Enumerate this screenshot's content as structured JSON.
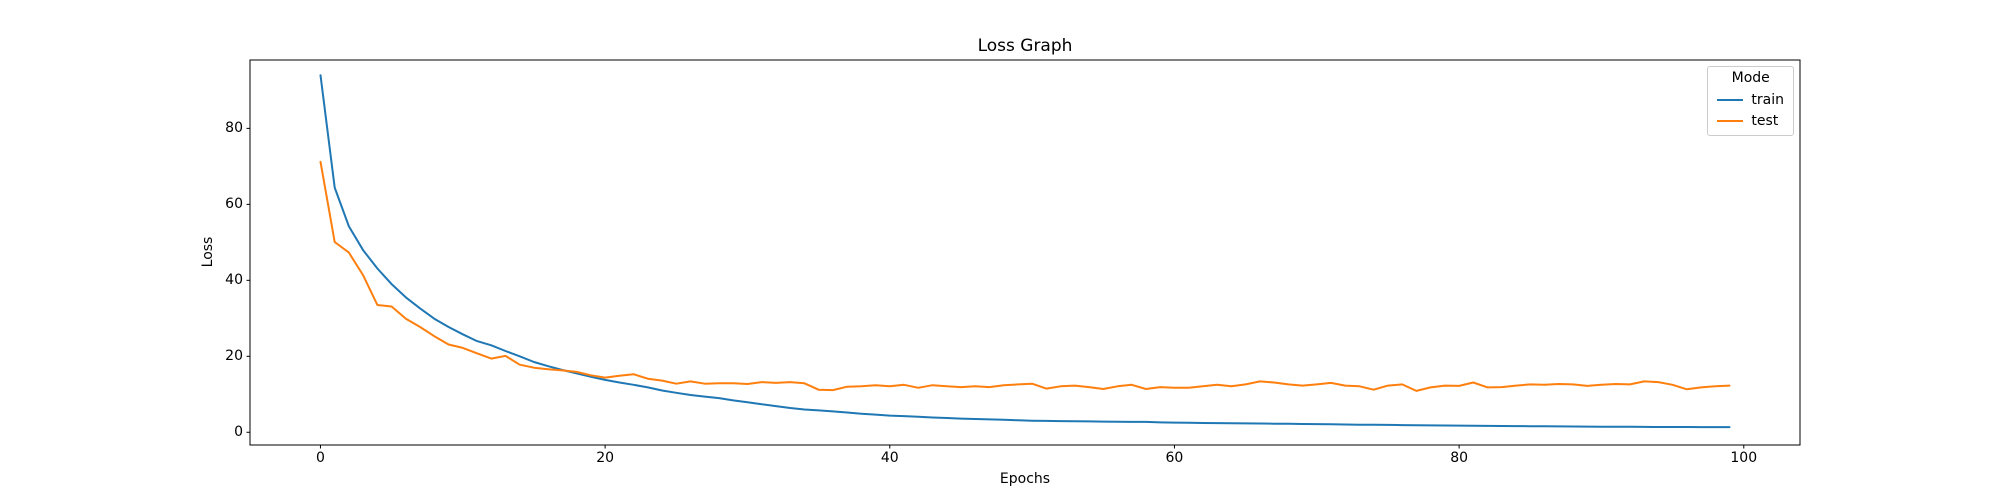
{
  "figure": {
    "title": "Loss Graph",
    "xlabel": "Epochs",
    "ylabel": "Loss"
  },
  "legend": {
    "title": "Mode",
    "entries": [
      {
        "label": "train",
        "color": "#1f77b4"
      },
      {
        "label": "test",
        "color": "#ff7f0e"
      }
    ]
  },
  "chart_data": {
    "type": "line",
    "title": "Loss Graph",
    "xlabel": "Epochs",
    "ylabel": "Loss",
    "grid": false,
    "legend_title": "Mode",
    "legend_position": "upper right",
    "xlim": [
      -4.95,
      103.95
    ],
    "ylim": [
      -3.35,
      98.0
    ],
    "x_ticks": [
      0,
      20,
      40,
      60,
      80,
      100
    ],
    "y_ticks": [
      0,
      20,
      40,
      60,
      80
    ],
    "x": [
      0,
      1,
      2,
      3,
      4,
      5,
      6,
      7,
      8,
      9,
      10,
      11,
      12,
      13,
      14,
      15,
      16,
      17,
      18,
      19,
      20,
      21,
      22,
      23,
      24,
      25,
      26,
      27,
      28,
      29,
      30,
      31,
      32,
      33,
      34,
      35,
      36,
      37,
      38,
      39,
      40,
      41,
      42,
      43,
      44,
      45,
      46,
      47,
      48,
      49,
      50,
      51,
      52,
      53,
      54,
      55,
      56,
      57,
      58,
      59,
      60,
      61,
      62,
      63,
      64,
      65,
      66,
      67,
      68,
      69,
      70,
      71,
      72,
      73,
      74,
      75,
      76,
      77,
      78,
      79,
      80,
      81,
      82,
      83,
      84,
      85,
      86,
      87,
      88,
      89,
      90,
      91,
      92,
      93,
      94,
      95,
      96,
      97,
      98,
      99
    ],
    "series": [
      {
        "name": "train",
        "color": "#1f77b4",
        "values": [
          94.0,
          64.4,
          54.2,
          47.9,
          43.1,
          39.0,
          35.5,
          32.6,
          29.9,
          27.7,
          25.8,
          24.0,
          22.9,
          21.4,
          20.0,
          18.5,
          17.4,
          16.4,
          15.5,
          14.6,
          13.8,
          13.1,
          12.5,
          11.8,
          11.0,
          10.4,
          9.8,
          9.4,
          9.0,
          8.4,
          7.9,
          7.4,
          6.9,
          6.4,
          6.0,
          5.75,
          5.5,
          5.2,
          4.9,
          4.65,
          4.4,
          4.25,
          4.1,
          3.9,
          3.75,
          3.6,
          3.5,
          3.4,
          3.3,
          3.15,
          3.05,
          3.0,
          2.95,
          2.9,
          2.85,
          2.8,
          2.75,
          2.72,
          2.72,
          2.6,
          2.55,
          2.5,
          2.45,
          2.42,
          2.38,
          2.34,
          2.3,
          2.26,
          2.22,
          2.18,
          2.15,
          2.1,
          2.05,
          2.0,
          1.98,
          1.94,
          1.9,
          1.86,
          1.82,
          1.78,
          1.75,
          1.72,
          1.68,
          1.65,
          1.62,
          1.6,
          1.57,
          1.54,
          1.52,
          1.5,
          1.48,
          1.46,
          1.44,
          1.42,
          1.4,
          1.39,
          1.38,
          1.37,
          1.36,
          1.35
        ]
      },
      {
        "name": "test",
        "color": "#ff7f0e",
        "values": [
          71.2,
          50.1,
          47.3,
          41.3,
          33.5,
          33.1,
          29.9,
          27.7,
          25.3,
          23.1,
          22.2,
          20.8,
          19.4,
          20.1,
          17.8,
          17.0,
          16.6,
          16.3,
          15.9,
          15.0,
          14.4,
          14.9,
          15.3,
          14.1,
          13.6,
          12.8,
          13.4,
          12.8,
          12.9,
          12.9,
          12.7,
          13.2,
          13.0,
          13.2,
          12.9,
          11.2,
          11.1,
          12.0,
          12.1,
          12.4,
          12.1,
          12.5,
          11.7,
          12.4,
          12.1,
          11.9,
          12.1,
          11.9,
          12.4,
          12.6,
          12.8,
          11.5,
          12.1,
          12.3,
          11.9,
          11.4,
          12.1,
          12.5,
          11.4,
          11.9,
          11.7,
          11.7,
          12.1,
          12.5,
          12.1,
          12.6,
          13.4,
          13.1,
          12.6,
          12.3,
          12.6,
          13.0,
          12.3,
          12.1,
          11.2,
          12.3,
          12.6,
          10.9,
          11.8,
          12.3,
          12.2,
          13.1,
          11.8,
          11.9,
          12.3,
          12.6,
          12.5,
          12.7,
          12.6,
          12.2,
          12.5,
          12.7,
          12.6,
          13.4,
          13.2,
          12.5,
          11.3,
          11.8,
          12.1,
          12.3
        ]
      }
    ]
  }
}
